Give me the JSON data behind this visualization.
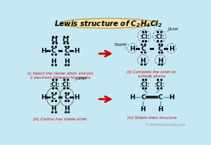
{
  "title": "Lewis structure of $C_2H_4Cl_2$",
  "bg_color": "#c5e8f2",
  "title_bg": "#f5e0b0",
  "title_border": "#c8a050",
  "arrow_color": "#cc0000",
  "label_color": "#cc0000",
  "blue_color": "#3399cc",
  "gray_color": "#888888",
  "panel_labels": [
    "(i) Select the center atom and put\n2 electrons between the atoms",
    "(ii) Complete the octet on\noutside atoms",
    "(iii) Carbon has stable octet",
    "(iv) Stable lewis structure"
  ],
  "octet_label": "Octet",
  "duplet_label": "Duplet",
  "watermark": "© knordislearning.com"
}
